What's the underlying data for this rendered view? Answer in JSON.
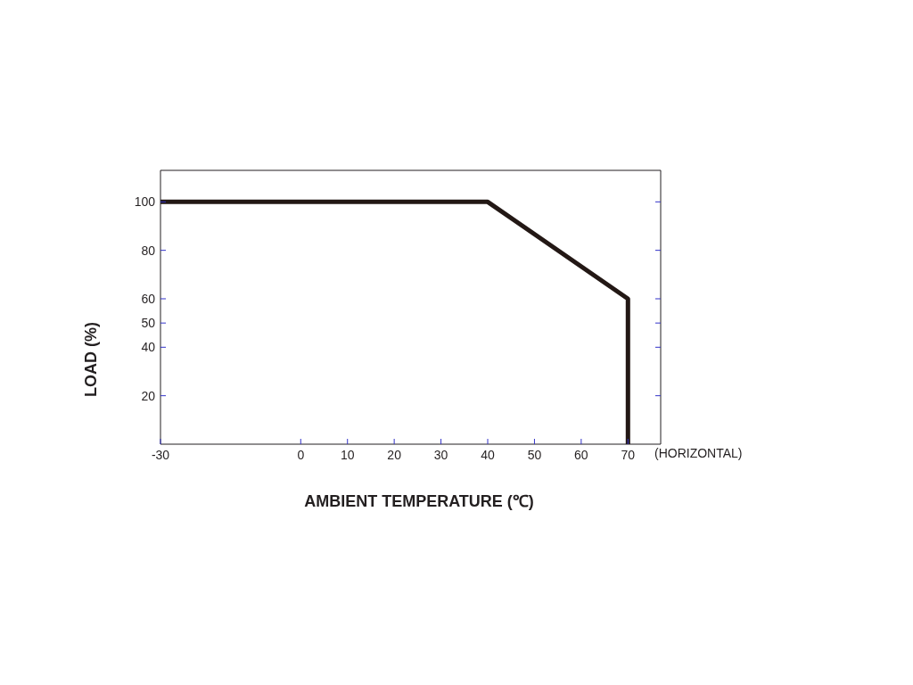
{
  "chart_data": {
    "type": "line",
    "xlabel": "AMBIENT TEMPERATURE (℃)",
    "ylabel": "LOAD (%)",
    "annotations": [
      "(HORIZONTAL)"
    ],
    "x": [
      -30,
      40,
      70,
      70
    ],
    "values": [
      100,
      100,
      60,
      0
    ],
    "color": "#231815",
    "xlim": [
      -30,
      77
    ],
    "xticks": [
      -30,
      0,
      10,
      20,
      30,
      40,
      50,
      60,
      70
    ],
    "ylim": [
      0,
      113
    ],
    "yticks": [
      20,
      40,
      50,
      60,
      80,
      100
    ],
    "marker": "none",
    "line_style": "solid"
  }
}
